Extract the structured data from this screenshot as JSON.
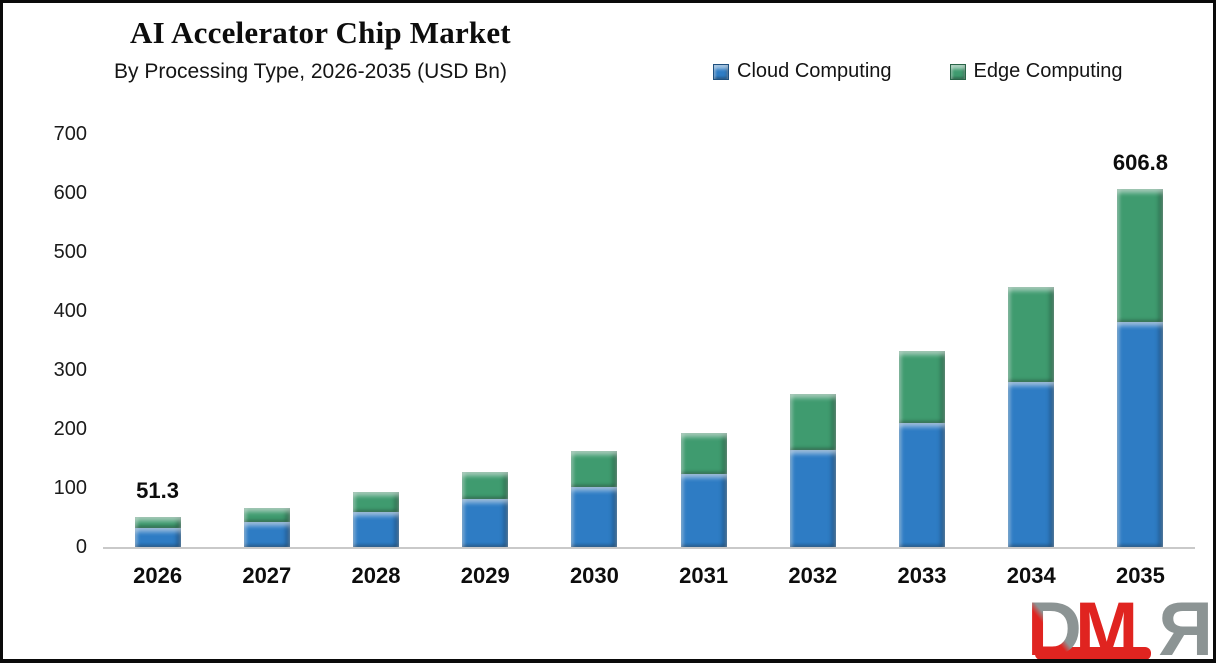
{
  "header": {
    "title": "AI Accelerator Chip Market",
    "subtitle": "By Processing Type, 2026-2035 (USD Bn)"
  },
  "legend": {
    "items": [
      {
        "label": "Cloud Computing",
        "color": "#2E7CC4"
      },
      {
        "label": "Edge Computing",
        "color": "#3F9B6F"
      }
    ]
  },
  "chart_data": {
    "type": "bar",
    "stacked": true,
    "title": "AI Accelerator Chip Market",
    "subtitle": "By Processing Type, 2026-2035 (USD Bn)",
    "unit": "USD Bn",
    "categories": [
      "2026",
      "2027",
      "2028",
      "2029",
      "2030",
      "2031",
      "2032",
      "2033",
      "2034",
      "2035"
    ],
    "series": [
      {
        "name": "Cloud Computing",
        "color": "#2E7CC4",
        "values": [
          33.0,
          42.3,
          59.0,
          81.0,
          101.0,
          123.0,
          164.0,
          211.0,
          279.0,
          380.8
        ]
      },
      {
        "name": "Edge Computing",
        "color": "#3F9B6F",
        "values": [
          18.3,
          23.7,
          34.0,
          46.0,
          61.0,
          71.0,
          96.0,
          122.0,
          162.0,
          226.0
        ]
      }
    ],
    "totals": [
      51.3,
      66.0,
      93.0,
      127.0,
      162.0,
      194.0,
      260.0,
      333.0,
      441.0,
      606.8
    ],
    "data_labels": [
      {
        "category": "2026",
        "text": "51.3"
      },
      {
        "category": "2035",
        "text": "606.8"
      }
    ],
    "ylim": [
      0,
      700
    ],
    "yticks": [
      0,
      100,
      200,
      300,
      400,
      500,
      600,
      700
    ],
    "grid": false,
    "legend_position": "top-right"
  },
  "watermark": {
    "letters": [
      "D",
      "M",
      "R"
    ],
    "red": "#E02420",
    "gray": "#8C9494"
  }
}
